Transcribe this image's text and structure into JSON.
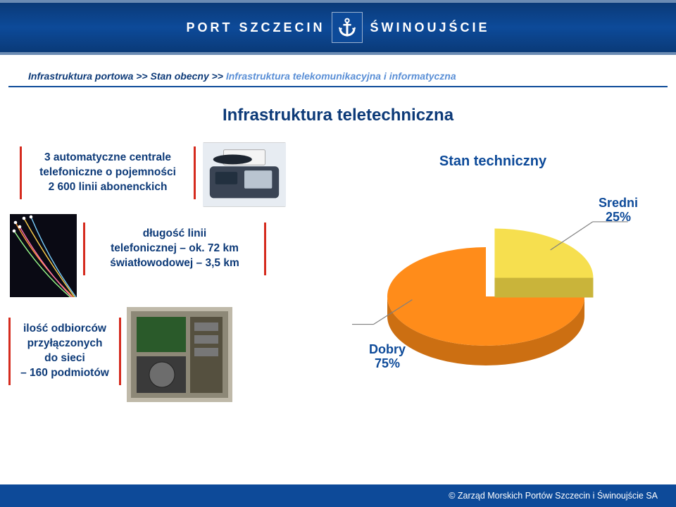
{
  "header": {
    "brand_left": "PORT SZCZECIN",
    "brand_right": "ŚWINOUJŚCIE",
    "band_color": "#0d4a99",
    "band_border": "#6b8bb3"
  },
  "breadcrumb": {
    "p1": "Infrastruktura portowa >> Stan obecny >> ",
    "p2": "Infrastruktura telekomunikacyjna i informatyczna",
    "dark_color": "#0d3a78",
    "light_color": "#5a8fd6",
    "underline_color": "#0d4a99"
  },
  "title": "Infrastruktura teletechniczna",
  "boxes": {
    "box1_l1": "3 automatyczne centrale",
    "box1_l2": "telefoniczne o pojemności",
    "box1_l3": "2 600 linii abonenckich",
    "box2_l1": "długość linii",
    "box2_l2": "telefonicznej – ok. 72 km",
    "box2_l3": "światłowodowej – 3,5 km",
    "box3_l1": "ilość odbiorców",
    "box3_l2": "przyłączonych",
    "box3_l3": "do sieci",
    "box3_l4": "– 160 podmiotów",
    "border_color": "#d52b1e",
    "text_color": "#0d3a78",
    "fontsize": 15.5
  },
  "chart": {
    "type": "pie-3d-exploded",
    "title": "Stan techniczny",
    "title_fontsize": 20,
    "title_color": "#0d4a99",
    "slices": [
      {
        "name": "Dobry",
        "value": 75,
        "label": "Dobry\n75%",
        "color": "#ff8c1a",
        "side_color": "#cc6f12",
        "exploded": false
      },
      {
        "name": "Sredni",
        "value": 25,
        "label": "Sredni\n25%",
        "color": "#f6df4f",
        "side_color": "#c9b43a",
        "exploded": true
      }
    ],
    "label_color": "#0d4a99",
    "label_fontsize": 18,
    "background_color": "#ffffff",
    "leader_color": "#808080"
  },
  "footer": {
    "text": "©   Zarząd Morskich Portów Szczecin i Świnoujście SA",
    "bg_color": "#0d4a99",
    "text_color": "#ffffff"
  }
}
